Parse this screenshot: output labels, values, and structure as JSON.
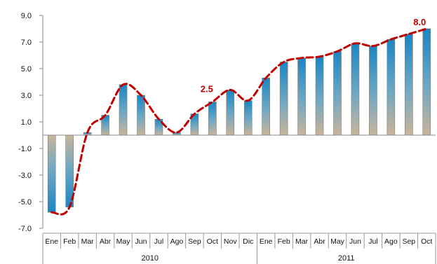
{
  "chart_data": {
    "type": "bar",
    "categories": [
      "Ene",
      "Feb",
      "Mar",
      "Abr",
      "May",
      "Jun",
      "Jul",
      "Ago",
      "Sep",
      "Oct",
      "Nov",
      "Dic",
      "Ene",
      "Feb",
      "Mar",
      "Abr",
      "May",
      "Jun",
      "Jul",
      "Ago",
      "Sep",
      "Oct"
    ],
    "groups": [
      {
        "label": "2010",
        "count": 12
      },
      {
        "label": "2011",
        "count": 10
      }
    ],
    "series": [
      {
        "values": [
          -5.8,
          -5.4,
          0.2,
          1.5,
          3.8,
          3.0,
          1.2,
          0.2,
          1.6,
          2.5,
          3.4,
          2.6,
          4.3,
          5.5,
          5.8,
          5.9,
          6.3,
          6.9,
          6.7,
          7.2,
          7.6,
          8.0
        ]
      }
    ],
    "trend": {
      "style": "dashed",
      "color": "#c00000"
    },
    "data_labels": [
      {
        "index": 9,
        "text": "2.5"
      },
      {
        "index": 21,
        "text": "8.0"
      }
    ],
    "y_ticks": [
      "9.0",
      "7.0",
      "5.0",
      "3.0",
      "1.0",
      "-1.0",
      "-3.0",
      "-5.0",
      "-7.0"
    ],
    "ylim": [
      -7,
      9
    ],
    "grid": false,
    "legend": "none"
  }
}
